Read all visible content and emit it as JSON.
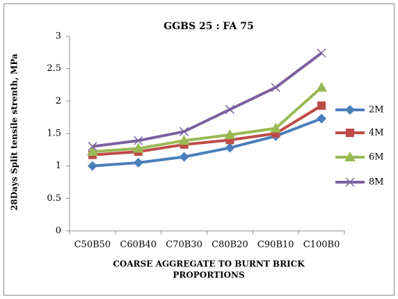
{
  "chart_data": {
    "type": "line",
    "title": "GGBS 25 : FA 75",
    "y_label": "28Days Split tensile strenth, MPa",
    "x_label": [
      "COARSE AGGREGATE TO BURNT BRICK",
      "PROPORTIONS"
    ],
    "categories": [
      "C50B50",
      "C60B40",
      "C70B30",
      "C80B20",
      "C90B10",
      "C100B0"
    ],
    "series": [
      {
        "name": "2M",
        "color": "#4a7ebb",
        "marker": "diamond",
        "values": [
          1.0,
          1.05,
          1.14,
          1.28,
          1.46,
          1.73
        ]
      },
      {
        "name": "4M",
        "color": "#be4b48",
        "marker": "square",
        "values": [
          1.17,
          1.22,
          1.33,
          1.4,
          1.5,
          1.93
        ]
      },
      {
        "name": "6M",
        "color": "#98b954",
        "marker": "triangle",
        "values": [
          1.22,
          1.27,
          1.39,
          1.48,
          1.58,
          2.21
        ]
      },
      {
        "name": "8M",
        "color": "#7d60a0",
        "marker": "x",
        "values": [
          1.3,
          1.39,
          1.53,
          1.87,
          2.21,
          2.74
        ]
      }
    ],
    "ylim": [
      0,
      3
    ],
    "yticks": [
      0,
      0.5,
      1,
      1.5,
      2,
      2.5,
      3
    ],
    "grid": false,
    "legend": "right"
  }
}
